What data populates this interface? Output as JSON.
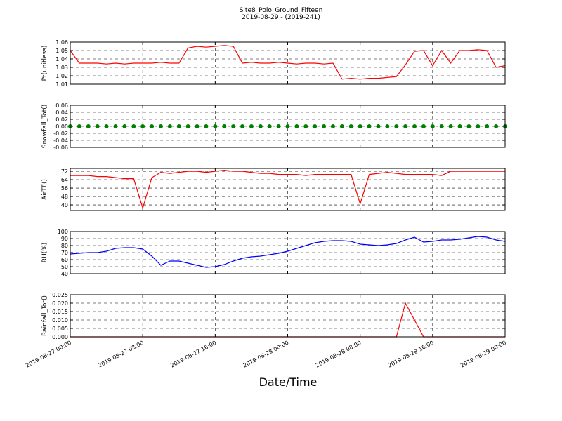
{
  "title": "Site8_Polo_Ground_Fifteen",
  "subtitle": "2019-08-29 - (2019-241)",
  "xlabel": "Date/Time",
  "x": [
    "2019-08-27 00:00",
    "2019-08-27 01:00",
    "2019-08-27 02:00",
    "2019-08-27 03:00",
    "2019-08-27 04:00",
    "2019-08-27 05:00",
    "2019-08-27 06:00",
    "2019-08-27 07:00",
    "2019-08-27 08:00",
    "2019-08-27 09:00",
    "2019-08-27 10:00",
    "2019-08-27 11:00",
    "2019-08-27 12:00",
    "2019-08-27 13:00",
    "2019-08-27 14:00",
    "2019-08-27 15:00",
    "2019-08-27 16:00",
    "2019-08-27 17:00",
    "2019-08-27 18:00",
    "2019-08-27 19:00",
    "2019-08-27 20:00",
    "2019-08-27 21:00",
    "2019-08-27 22:00",
    "2019-08-27 23:00",
    "2019-08-28 00:00",
    "2019-08-28 01:00",
    "2019-08-28 02:00",
    "2019-08-28 03:00",
    "2019-08-28 04:00",
    "2019-08-28 05:00",
    "2019-08-28 06:00",
    "2019-08-28 07:00",
    "2019-08-28 08:00",
    "2019-08-28 09:00",
    "2019-08-28 10:00",
    "2019-08-28 11:00",
    "2019-08-28 12:00",
    "2019-08-28 13:00",
    "2019-08-28 14:00",
    "2019-08-28 15:00",
    "2019-08-28 16:00",
    "2019-08-28 17:00",
    "2019-08-28 18:00",
    "2019-08-28 19:00",
    "2019-08-28 20:00",
    "2019-08-28 21:00",
    "2019-08-28 22:00",
    "2019-08-28 23:00",
    "2019-08-29 00:00"
  ],
  "xlim": [
    "2019-08-27 00:00",
    "2019-08-29 00:00"
  ],
  "xticks": [
    "2019-08-27 00:00",
    "2019-08-27 08:00",
    "2019-08-27 16:00",
    "2019-08-28 00:00",
    "2019-08-28 08:00",
    "2019-08-28 16:00",
    "2019-08-29 00:00"
  ],
  "chart_data": [
    {
      "type": "line",
      "ylabel": "Pt(unitless)",
      "color": "#ff0000",
      "grid": true,
      "ylim": [
        1.01,
        1.06
      ],
      "yticks": [
        1.01,
        1.02,
        1.03,
        1.04,
        1.05,
        1.06
      ],
      "values": [
        1.05,
        1.035,
        1.035,
        1.035,
        1.034,
        1.035,
        1.034,
        1.035,
        1.035,
        1.035,
        1.036,
        1.035,
        1.035,
        1.053,
        1.055,
        1.054,
        1.055,
        1.056,
        1.055,
        1.035,
        1.036,
        1.035,
        1.035,
        1.036,
        1.035,
        1.034,
        1.035,
        1.035,
        1.034,
        1.035,
        1.016,
        1.017,
        1.016,
        1.017,
        1.017,
        1.018,
        1.019,
        1.033,
        1.049,
        1.05,
        1.032,
        1.05,
        1.035,
        1.05,
        1.05,
        1.051,
        1.05,
        1.03,
        1.032
      ]
    },
    {
      "type": "scatter",
      "ylabel": "Snowfall_Tot()",
      "color": "#008000",
      "grid": true,
      "ylim": [
        -0.06,
        0.06
      ],
      "yticks": [
        -0.06,
        -0.04,
        -0.02,
        {
          "value": 0,
          "label": "0.00"
        },
        0.02,
        0.04,
        0.06
      ],
      "values": [
        0,
        0,
        0,
        0,
        0,
        0,
        0,
        0,
        0,
        0,
        0,
        0,
        0,
        0,
        0,
        0,
        0,
        0,
        0,
        0,
        0,
        0,
        0,
        0,
        0,
        0,
        0,
        0,
        0,
        0,
        0,
        0,
        0,
        0,
        0,
        0,
        0,
        0,
        0,
        0,
        0,
        0,
        0,
        0,
        0,
        0,
        0,
        0,
        0
      ]
    },
    {
      "type": "line",
      "ylabel": "AirTF()",
      "color": "#ff0000",
      "grid": true,
      "ylim": [
        34.7,
        74.7
      ],
      "yticks": [
        40,
        48,
        56,
        64,
        72
      ],
      "values": [
        68,
        68,
        68,
        67,
        67,
        66,
        65,
        65,
        37,
        66,
        71,
        70,
        71,
        72,
        72,
        71,
        72,
        73,
        72,
        72,
        71,
        70,
        70,
        69,
        69,
        69,
        68,
        69,
        69,
        69,
        69,
        69,
        41,
        69,
        70,
        71,
        70,
        69,
        69,
        69,
        69,
        68,
        72,
        72,
        72,
        72,
        72,
        72,
        72
      ]
    },
    {
      "type": "line",
      "ylabel": "RH(%)",
      "color": "#0000ff",
      "grid": true,
      "ylim": [
        40,
        100
      ],
      "yticks": [
        40,
        50,
        60,
        70,
        80,
        90,
        100
      ],
      "values": [
        68,
        69,
        70,
        70,
        72,
        76,
        77,
        77,
        75,
        65,
        52,
        58,
        58,
        55,
        52,
        49,
        50,
        53,
        58,
        62,
        64,
        65,
        67,
        69,
        72,
        76,
        80,
        84,
        86,
        87,
        87,
        86,
        82,
        81,
        80,
        81,
        83,
        88,
        92,
        85,
        86,
        88,
        88,
        89,
        91,
        93,
        92,
        88,
        86
      ]
    },
    {
      "type": "line",
      "ylabel": "Rainfall_Tot()",
      "color": "#ff0000",
      "grid": true,
      "ylim": [
        0,
        0.025
      ],
      "yticks": [
        {
          "value": 0,
          "label": "0.000"
        },
        0.005,
        {
          "value": 0.01,
          "label": "0.010"
        },
        0.015,
        {
          "value": 0.02,
          "label": "0.020"
        },
        0.025
      ],
      "values": [
        0,
        0,
        0,
        0,
        0,
        0,
        0,
        0,
        0,
        0,
        0,
        0,
        0,
        0,
        0,
        0,
        0,
        0,
        0,
        0,
        0,
        0,
        0,
        0,
        0,
        0,
        0,
        0,
        0,
        0,
        0,
        0,
        0,
        0,
        0,
        0,
        0,
        0.02,
        0.01,
        0,
        0,
        0,
        0,
        0,
        0,
        0,
        0,
        0,
        0
      ]
    }
  ]
}
